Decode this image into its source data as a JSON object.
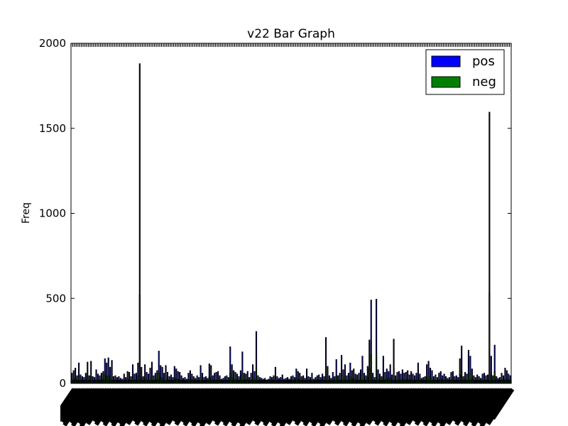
{
  "chart_data": {
    "type": "bar",
    "title": "v22 Bar Graph",
    "xlabel": "",
    "ylabel": "Freq",
    "ylim": [
      0,
      2000
    ],
    "yticks": [
      0,
      500,
      1000,
      1500,
      2000
    ],
    "x_tick_labels_legible": false,
    "grid": false,
    "legend_position": "top-right",
    "series": [
      {
        "name": "pos",
        "color": "#0000ff",
        "values": [
          60,
          75,
          90,
          45,
          120,
          50,
          40,
          35,
          60,
          125,
          45,
          130,
          40,
          35,
          80,
          55,
          45,
          60,
          70,
          145,
          120,
          150,
          95,
          135,
          40,
          45,
          35,
          40,
          30,
          25,
          55,
          35,
          70,
          65,
          40,
          110,
          55,
          60,
          120,
          1880,
          95,
          40,
          110,
          65,
          55,
          90,
          125,
          45,
          60,
          75,
          190,
          105,
          95,
          60,
          105,
          65,
          40,
          50,
          35,
          100,
          85,
          70,
          65,
          45,
          30,
          35,
          25,
          60,
          75,
          55,
          40,
          30,
          45,
          35,
          105,
          60,
          35,
          40,
          30,
          115,
          105,
          45,
          60,
          65,
          70,
          45,
          25,
          30,
          40,
          45,
          35,
          215,
          110,
          75,
          65,
          55,
          40,
          75,
          185,
          60,
          55,
          70,
          35,
          60,
          110,
          70,
          305,
          45,
          35,
          30,
          25,
          30,
          20,
          25,
          40,
          35,
          45,
          95,
          40,
          30,
          35,
          50,
          25,
          30,
          35,
          25,
          40,
          45,
          35,
          85,
          70,
          60,
          40,
          45,
          30,
          85,
          40,
          35,
          60,
          25,
          35,
          45,
          50,
          35,
          55,
          40,
          270,
          100,
          45,
          30,
          65,
          40,
          140,
          45,
          60,
          165,
          80,
          110,
          45,
          60,
          120,
          75,
          85,
          55,
          50,
          60,
          80,
          160,
          60,
          45,
          100,
          255,
          490,
          60,
          35,
          495,
          80,
          55,
          40,
          160,
          65,
          85,
          70,
          110,
          50,
          260,
          45,
          65,
          70,
          55,
          80,
          60,
          65,
          75,
          50,
          70,
          55,
          45,
          60,
          120,
          55,
          30,
          35,
          40,
          110,
          130,
          90,
          75,
          40,
          50,
          35,
          60,
          70,
          45,
          55,
          40,
          30,
          35,
          65,
          70,
          40,
          45,
          35,
          145,
          220,
          40,
          65,
          55,
          195,
          160,
          85,
          45,
          35,
          50,
          40,
          30,
          55,
          60,
          45,
          50,
          1595,
          160,
          45,
          225,
          40,
          30,
          35,
          60,
          45,
          90,
          75,
          55,
          45
        ]
      },
      {
        "name": "neg",
        "color": "#008000",
        "values": [
          20,
          25,
          30,
          15,
          40,
          20,
          15,
          10,
          20,
          45,
          15,
          40,
          15,
          10,
          25,
          20,
          15,
          20,
          25,
          50,
          40,
          45,
          30,
          40,
          15,
          15,
          10,
          15,
          10,
          10,
          20,
          10,
          25,
          20,
          15,
          35,
          20,
          20,
          40,
          520,
          30,
          15,
          35,
          20,
          20,
          30,
          40,
          15,
          20,
          25,
          60,
          35,
          30,
          20,
          35,
          20,
          15,
          15,
          10,
          30,
          25,
          25,
          20,
          15,
          10,
          10,
          10,
          20,
          25,
          20,
          15,
          10,
          15,
          10,
          35,
          20,
          10,
          15,
          10,
          40,
          35,
          15,
          20,
          20,
          25,
          15,
          10,
          10,
          15,
          15,
          10,
          60,
          35,
          25,
          20,
          20,
          15,
          25,
          55,
          20,
          20,
          25,
          10,
          20,
          35,
          25,
          100,
          15,
          10,
          10,
          10,
          10,
          5,
          10,
          15,
          10,
          15,
          30,
          15,
          10,
          10,
          15,
          10,
          10,
          10,
          10,
          15,
          15,
          10,
          30,
          25,
          20,
          15,
          15,
          10,
          30,
          15,
          10,
          20,
          10,
          10,
          15,
          15,
          10,
          20,
          15,
          90,
          35,
          15,
          10,
          20,
          15,
          45,
          15,
          20,
          55,
          25,
          35,
          15,
          20,
          40,
          25,
          30,
          20,
          15,
          20,
          25,
          50,
          20,
          15,
          35,
          85,
          170,
          20,
          10,
          165,
          25,
          20,
          15,
          50,
          20,
          30,
          25,
          35,
          15,
          85,
          15,
          20,
          25,
          20,
          25,
          20,
          20,
          25,
          15,
          25,
          20,
          15,
          20,
          40,
          20,
          10,
          10,
          15,
          35,
          40,
          30,
          25,
          15,
          15,
          10,
          20,
          25,
          15,
          20,
          15,
          10,
          10,
          20,
          25,
          15,
          15,
          10,
          50,
          70,
          15,
          20,
          20,
          60,
          50,
          30,
          15,
          10,
          15,
          15,
          10,
          20,
          20,
          15,
          15,
          530,
          50,
          15,
          70,
          15,
          10,
          10,
          20,
          15,
          30,
          25,
          20,
          15
        ]
      }
    ]
  }
}
